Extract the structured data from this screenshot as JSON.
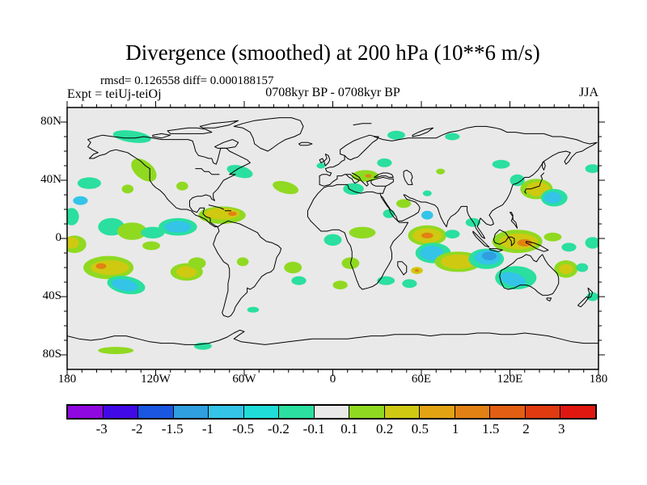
{
  "header": {
    "title": "Divergence (smoothed) at 200 hPa (10**6 m/s)",
    "stats": "rmsd= 0.126558 diff= 0.000188157",
    "expt": "Expt = teiUj-teiOj",
    "period": "0708kyr BP - 0708kyr BP",
    "season": "JJA"
  },
  "chart_data": {
    "type": "filled-contour-map",
    "projection": "equirectangular",
    "lon_range": [
      -180,
      180
    ],
    "lat_range": [
      -90,
      90
    ],
    "background": "#e9e9e9",
    "x_axis": {
      "major_tick_deg": 60,
      "minor_tick_deg": 10,
      "labels": [
        {
          "deg": -180,
          "label": "180"
        },
        {
          "deg": -120,
          "label": "120W"
        },
        {
          "deg": -60,
          "label": "60W"
        },
        {
          "deg": 0,
          "label": "0"
        },
        {
          "deg": 60,
          "label": "60E"
        },
        {
          "deg": 120,
          "label": "120E"
        },
        {
          "deg": 180,
          "label": "180"
        }
      ]
    },
    "y_axis": {
      "major_tick_deg": 40,
      "minor_tick_deg": 10,
      "labels": [
        {
          "deg": 80,
          "label": "80N"
        },
        {
          "deg": 40,
          "label": "40N"
        },
        {
          "deg": 0,
          "label": "0"
        },
        {
          "deg": -40,
          "label": "40S"
        },
        {
          "deg": -80,
          "label": "80S"
        }
      ]
    },
    "colorbar": {
      "levels": [
        "-3",
        "-2",
        "-1.5",
        "-1",
        "-0.5",
        "-0.2",
        "-0.1",
        "0.1",
        "0.2",
        "0.5",
        "1",
        "1.5",
        "2",
        "3"
      ],
      "colors": [
        "#9008e0",
        "#4109e6",
        "#1a56e2",
        "#2f9fe0",
        "#33c4e8",
        "#1fdcd8",
        "#2adf9f",
        "#e9e9e9",
        "#90d921",
        "#cfc912",
        "#e2a313",
        "#e28113",
        "#e25e12",
        "#e03a11",
        "#df1710"
      ]
    },
    "anomaly_patches": [
      [
        -136,
        70,
        13,
        4,
        -8,
        6
      ],
      [
        -128,
        47,
        10,
        6,
        -40,
        8
      ],
      [
        -63,
        46,
        9,
        4,
        -15,
        6
      ],
      [
        -102,
        36,
        4,
        3,
        0,
        8
      ],
      [
        -165,
        38,
        8,
        4,
        0,
        6
      ],
      [
        -139,
        34,
        4,
        3,
        0,
        8
      ],
      [
        -171,
        26,
        5,
        3,
        0,
        4
      ],
      [
        -177,
        15,
        5,
        6,
        0,
        6
      ],
      [
        -150,
        8,
        9,
        6,
        0,
        6
      ],
      [
        -136,
        5,
        10,
        6,
        0,
        8
      ],
      [
        -122,
        4,
        8,
        4,
        0,
        6
      ],
      [
        -105,
        8,
        13,
        6,
        0,
        6
      ],
      [
        -105,
        8,
        9,
        4,
        0,
        4
      ],
      [
        -75,
        16,
        16,
        6,
        0,
        8
      ],
      [
        -75,
        17,
        12,
        4,
        0,
        9
      ],
      [
        -68,
        17,
        3,
        1.5,
        0,
        11
      ],
      [
        -32,
        35,
        9,
        4,
        -15,
        8
      ],
      [
        -8,
        50,
        3,
        2,
        0,
        6
      ],
      [
        -175,
        -4,
        8,
        6,
        0,
        8
      ],
      [
        -177,
        -3,
        5,
        4,
        0,
        9
      ],
      [
        -152,
        -20,
        17,
        8,
        0,
        8
      ],
      [
        -151,
        -20,
        13,
        5,
        0,
        9
      ],
      [
        -157,
        -19,
        3.5,
        2,
        0,
        11
      ],
      [
        -140,
        -32,
        13,
        6,
        -10,
        6
      ],
      [
        -141,
        -32,
        9,
        4,
        -10,
        4
      ],
      [
        -99,
        -23,
        11,
        6,
        0,
        8
      ],
      [
        -99,
        -23,
        7,
        4,
        0,
        9
      ],
      [
        -123,
        -5,
        6,
        3,
        0,
        8
      ],
      [
        -92,
        -17,
        6,
        4,
        0,
        8
      ],
      [
        -61,
        -16,
        4,
        3,
        0,
        8
      ],
      [
        -27,
        -20,
        6,
        4,
        0,
        8
      ],
      [
        -23,
        -29,
        5,
        3,
        0,
        6
      ],
      [
        -54,
        -49,
        4,
        2,
        0,
        6
      ],
      [
        -147,
        -77,
        12,
        2.5,
        0,
        8
      ],
      [
        -88,
        -74,
        6,
        2.5,
        0,
        6
      ],
      [
        43,
        71,
        6,
        3,
        0,
        6
      ],
      [
        81,
        70,
        5,
        2.5,
        0,
        6
      ],
      [
        35,
        52,
        5,
        3,
        0,
        6
      ],
      [
        22,
        43,
        9,
        4,
        0,
        8
      ],
      [
        24,
        43,
        2,
        1.2,
        0,
        11
      ],
      [
        14,
        34,
        7,
        4,
        0,
        6
      ],
      [
        114,
        51,
        6,
        3,
        0,
        6
      ],
      [
        125,
        40,
        5,
        4,
        0,
        6
      ],
      [
        138,
        34,
        11,
        7,
        0,
        8
      ],
      [
        139,
        34,
        8,
        5,
        0,
        9
      ],
      [
        150,
        28,
        9,
        6,
        0,
        6
      ],
      [
        149,
        28,
        6,
        4,
        0,
        4
      ],
      [
        176,
        48,
        5,
        3,
        0,
        6
      ],
      [
        48,
        24,
        5,
        3,
        0,
        8
      ],
      [
        38,
        17,
        4,
        3,
        0,
        6
      ],
      [
        20,
        4,
        9,
        4,
        0,
        8
      ],
      [
        0,
        -1,
        6,
        4,
        0,
        6
      ],
      [
        64,
        2,
        13,
        7,
        0,
        8
      ],
      [
        64,
        2,
        10,
        5,
        0,
        9
      ],
      [
        64,
        2,
        4,
        2,
        0,
        11
      ],
      [
        68,
        -10,
        12,
        7,
        0,
        6
      ],
      [
        67,
        -10,
        8,
        5,
        0,
        4
      ],
      [
        85,
        -16,
        16,
        7,
        0,
        8
      ],
      [
        85,
        -16,
        12,
        5,
        0,
        9
      ],
      [
        104,
        -14,
        12,
        7,
        0,
        6
      ],
      [
        105,
        -13,
        9,
        5,
        0,
        4
      ],
      [
        106,
        -12,
        5,
        3,
        0,
        3
      ],
      [
        125,
        -2,
        17,
        8,
        0,
        8
      ],
      [
        126,
        -2,
        13,
        5.5,
        0,
        9
      ],
      [
        130,
        -3,
        5,
        2.5,
        0,
        11
      ],
      [
        81,
        3,
        5,
        3,
        0,
        6
      ],
      [
        64,
        16,
        4,
        3,
        0,
        4
      ],
      [
        95,
        11,
        5,
        3,
        0,
        6
      ],
      [
        64,
        31,
        3,
        2,
        0,
        6
      ],
      [
        73,
        46,
        3,
        2,
        0,
        8
      ],
      [
        12,
        -17,
        6,
        4,
        0,
        8
      ],
      [
        5,
        -32,
        5,
        3,
        0,
        8
      ],
      [
        36,
        -29,
        6,
        3,
        0,
        6
      ],
      [
        52,
        -31,
        5,
        3,
        0,
        6
      ],
      [
        57,
        -22,
        4,
        2.5,
        0,
        9
      ],
      [
        57,
        -22,
        1.5,
        1,
        0,
        11
      ],
      [
        124,
        -27,
        14,
        8,
        0,
        6
      ],
      [
        122,
        -28,
        9,
        4.5,
        -15,
        4
      ],
      [
        158,
        -21,
        8,
        6,
        0,
        8
      ],
      [
        158,
        -21,
        5,
        3.5,
        0,
        9
      ],
      [
        169,
        -20,
        4,
        3,
        0,
        6
      ],
      [
        176,
        -3,
        5,
        4,
        0,
        6
      ],
      [
        149,
        1,
        6,
        3,
        0,
        8
      ],
      [
        160,
        -6,
        5,
        3,
        0,
        6
      ],
      [
        176,
        -40,
        4,
        3,
        0,
        6
      ]
    ],
    "coastlines": [
      "M -166 68 L -160 70 -156 71 -149 70 -141 69 -134 69 -128 70 -122 69 -116 68 -110 68 -104 68 -98 68 -95 67 -94 64 -93 60 -91 57 -87 56 -84 55 -82 55 -81 52 -79 51 -78 54 -77 58 -76 62 -72 62 -70 60 -66 58 -62 56 -58 54 -56 52 -60 50 -64 48 -67 46 -70 44 -66 44 -70 42 -74 40 -76 37 -78 34 -81 31 -81 28 -80 26 -82 27 -83 29 -86 30 -89 29 -92 29 -95 28 -97 26 -97 22 -95 19 -92 18 -90 21 -87 21 -88 17 -86 15 -83 14 -83 11 -80 9 -78 8 -80 8 -83 10 -86 13 -90 15 -93 16 -96 19 -99 20 -103 20 -106 21 -109 24 -112 27 -114 30 -117 33 -120 35 -122 37 -124 40 -124 44 -124 48 -127 50 -130 53 -133 55 -136 57 -139 59 -143 60 -147 61 -151 60 -154 58 -158 57 -162 55 -165 55 -162 58 -159 59 -163 61 -166 63 -164 66 -166 68 Z",
      "M -44 60 L -49 62 -53 65 -54 69 -56 73 -61 76 -67 77 -61 79 -53 81 -45 82 -36 83 -28 83 -22 81 -20 77 -22 72 -26 70 -32 68 -37 65 -41 62 -44 60 Z",
      "M -78 8 L -75 10 -71 12 -67 11 -63 10 -59 8 -55 6 -51 4 -49 1 -45 -2 -41 -3 -37 -5 -35 -7 -36 -10 -38 -13 -39 -17 -40 -21 -42 -23 -45 -24 -48 -26 -51 -30 -53 -33 -56 -35 -58 -34 -58 -37 -60 -39 -62 -41 -64 -44 -66 -47 -67 -50 -69 -53 -71 -54 -74 -53 -75 -51 -74 -48 -73 -44 -72 -40 -71 -36 -71 -31 -70 -26 -70 -21 -71 -18 -74 -16 -76 -13 -78 -10 -80 -6 -81 -4 -80 -1 -79 2 -77 5 -78 8 Z",
      "M -6 35 L -10 31 -13 27 -15 23 -17 19 -17 15 -15 12 -12 9 -8 5 -4 5 0 6 4 6 8 4 9 1 10 -2 12 -5 13 -9 13 -13 12 -17 14 -22 16 -28 18 -33 20 -35 24 -34 27 -33 30 -31 33 -27 35 -23 38 -18 40 -14 40 -10 39 -6 41 -2 44 1 47 4 51 11 48 11 45 11 43 13 41 15 39 18 38 21 37 22 35 25 33 28 32 31 30 31 27 32 23 32 19 31 15 32 11 34 10 37 7 37 3 37 0 36 -3 36 -6 35 Z",
      "M -9 43 L -9 37 -6 36 -2 37 0 39 3 41 3 43 6 43 8 44 10 44 12 44",
      "M 12 44 L 14 42 16 41 18 40 17 39 15 38 14 39 13 41 11 42 9 44",
      "M 13 45 L 15 44 18 42 19 40 21 38 23 36 24 37 23 39 26 40",
      "M 26 40 L 30 41 34 42 38 41 41 41 41 39 38 37 36 36 32 36 29 36 27 37 26 38 26 40 Z",
      "M 36 36 L 35 34 34 31 32 31",
      "M -9 43 L -7 44 -4 44 -2 43 -1 45 -4 46 -5 48 -2 49 0 49 2 50 4 51 6 53 8 54 8 55 8 57",
      "M 8 57 L 5 58 5 61 9 64 14 67 19 69 25 71 29 70 31 70 30 68 27 66 24 63 21 60 19 58 17 56 14 55 12 54 10 55 8 57 Z",
      "M 28 42 L 31 44 34 45 37 45 40 44 41 42 38 42 36 43 33 43 30 42 28 42 Z",
      "M 50 47 L 53 45 54 42 53 40 54 37 51 37 49 40 48 43 48 46 50 47 Z",
      "M 28 70 L 34 68 40 67 45 68 51 69 58 69 64 69 70 69 74 71 79 73 85 74 91 76 97 77 104 77 110 76 114 75 118 73 124 73 130 72 137 72 143 72 149 70 155 70 160 69 165 68 170 66 174 65 179 66 176 64 172 62 169 60 165 59 162 56 160 53 158 51 157 53 159 56 161 59 158 60 153 59 149 57 146 55 143 53 141 50 139 47 136 44 133 42 130 42 128 40 125 38 122 37 121 34 120 31 118 27 115 23 111 21 108 19 106 16 108 13 109 10 107 9 104 10 102 12 100 14 99 11 98 8 100 5 102 2 103 0 101 1 99 4 97 7 96 10 94 13 92 16 91 19 91 22 89 22 87 22 85 19 83 17 80 15 78 12 77 8 75 11 73 15 72 18 71 21 69 23 66 24 63 25 60 25 57 26 55 27 52 28 49 30 48 30 50 27 53 26 56 25 58 23 59 21 58 18 55 16 51 14 47 12 44 12 43 15 41 18 39 20 37 23 35 26 34 28 33 29",
      "M 143 45 L 141 43 142 41 141 39 140 36 137 35 134 34 131 34 130 32 131 31",
      "M 143 53 L 144 50 143 47 142 49 142 52 143 53 Z",
      "M 95 5 L 98 2 101 -1 104 -4 106 -6 103 -5 100 -2 97 1 95 4 95 5 Z",
      "M 106 -7 L 111 -7 115 -8 112 -9 107 -8 106 -7 Z",
      "M 109 -1 L 110 3 113 6 117 4 119 1 117 -2 113 -4 110 -3 109 -1 Z",
      "M 119 1 L 121 -2 121 -5 123 -3 123 0 121 1 119 1 Z",
      "M 131 -2 L 136 -3 141 -5 146 -8 143 -9 138 -7 133 -4 131 -3 131 -2 Z",
      "M 120 18 L 122 15 121 12 123 10 125 7 124 11 122 13 122 16 121 18 120 18 Z",
      "M 114 -22 L 113 -26 114 -30 116 -34 119 -35 123 -34 127 -32 131 -32 134 -33 137 -35 139 -37 142 -39 146 -39 149 -38 151 -35 153 -31 153 -27 152 -24 149 -21 146 -18 144 -15 142 -11 140 -13 138 -16 136 -15 134 -12 131 -11 128 -13 125 -14 122 -17 119 -19 116 -21 114 -22 Z",
      "M 145 -41 L 148 -41 147 -43 145 -42 145 -41 Z",
      "M 173 -34 L 176 -37 175 -40 173 -41 174 -38 173 -35 173 -34 Z",
      "M 172 -40 L 169 -43 166 -46 168 -47 171 -44 173 -41 172 -40 Z",
      "M 44 -16 L 47 -16 50 -19 50 -23 48 -25 46 -22 44 -19 44 -16 Z",
      "M -5 50 L -3 52 -2 54 -3 57 -5 58 -4 55 -6 53 -5 50 Z",
      "M -8 52 L -6 53 -7 55 -9 54 -8 52 Z",
      "M -22 64 L -17 64 -14 65 -17 66 -21 66 -23 65 -22 64 Z",
      "M -112 74 L -105 75 -98 76 -92 76 -86 75 -82 73 -88 72 -96 72 -104 72 -110 72 -112 74 Z",
      "M -122 71 L -116 72 -110 71 -116 69 -122 70 -122 71 Z",
      "M -80 63 L -74 66 -68 68 -64 66 -66 63 -72 62 -78 62 -80 63 Z",
      "M -90 77 L -82 79 -72 80 -64 81 -70 78 -80 76 -88 76 -90 77 Z",
      "M 14 78 L 20 79 26 79",
      "M 54 71 L 58 73 63 75 68 76 64 73 59 71 54 70 54 71 Z",
      "M -93 48 L -89 48 -87 46 -84 46 -82 44 -79 44 -77 44",
      "M -84 23 L -80 22 -76 21 -74 20",
      "M -73 19 L -69 19",
      "M -180 -67 L -172 -69 -164 -70 -156 -69 -148 -67 -140 -67 -132 -69 -124 -71 -116 -72 -108 -72 -100 -73 -92 -73 -84 -72 -77 -70 -72 -68 -67 -65 -63 -63 -60 -64 -63 -66 -67 -69 -62 -71 -54 -72 -46 -73 -38 -72 -30 -71 -22 -70 -14 -69 -6 -69 2 -69 10 -69 18 -68 26 -67 34 -67 42 -66 50 -66 58 -66 66 -67 74 -66 82 -66 90 -66 98 -65 106 -65 114 -66 122 -66 130 -65 138 -66 146 -67 154 -69 162 -71 170 -72 180 -72"
    ]
  }
}
